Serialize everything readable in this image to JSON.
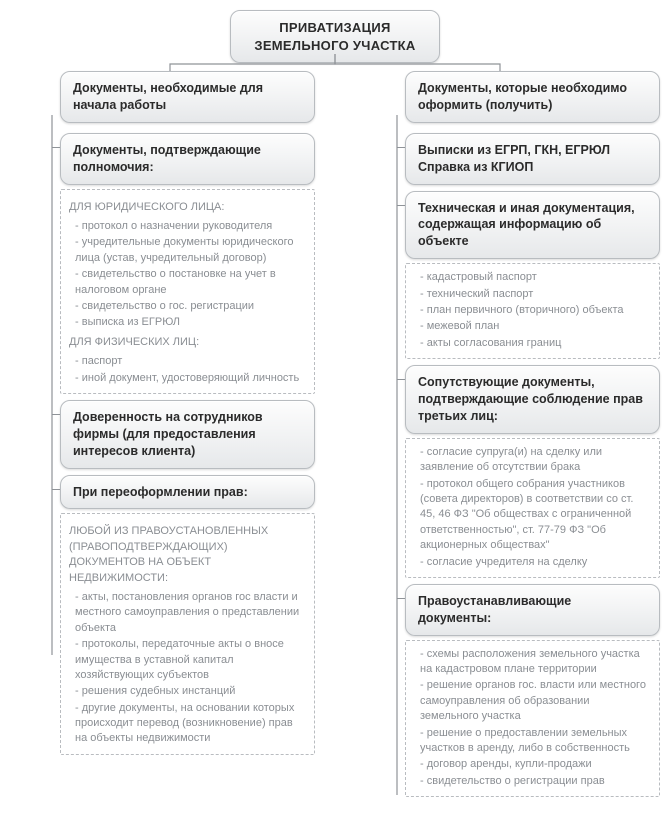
{
  "diagram": {
    "type": "flowchart",
    "background_color": "#ffffff",
    "box_fill_gradient": [
      "#fdfdfd",
      "#e6e8ea"
    ],
    "box_border_color": "#b8bcc0",
    "box_text_color": "#2b2b2b",
    "detail_border_color": "#b9bcc0",
    "detail_text_color": "#8a8e93",
    "connector_color": "#8f9398",
    "title_fontsize": 13,
    "heading_fontsize": 12.5,
    "detail_fontsize": 11,
    "root": "ПРИВАТИЗАЦИЯ ЗЕМЕЛЬНОГО УЧАСТКА",
    "left": {
      "title": "Документы, необходимые для начала работы",
      "groups": [
        {
          "title": "Документы, подтверждающие полномочия:",
          "detail": {
            "sections": [
              {
                "subhead": "ДЛЯ ЮРИДИЧЕСКОГО ЛИЦА:",
                "items": [
                  "протокол о назначении руководителя",
                  "учредительные документы юридического лица (устав, учредительный договор)",
                  "свидетельство о постановке на учет в налоговом органе",
                  "свидетельство о гос. регистрации",
                  "выписка из ЕГРЮЛ"
                ]
              },
              {
                "subhead": "ДЛЯ ФИЗИЧЕСКИХ ЛИЦ:",
                "items": [
                  "паспорт",
                  "иной документ, удостоверяющий личность"
                ]
              }
            ]
          }
        },
        {
          "title": "Доверенность на сотрудников фирмы (для предоставления интересов клиента)"
        },
        {
          "title": "При переоформлении прав:",
          "detail": {
            "sections": [
              {
                "subhead": "ЛЮБОЙ ИЗ ПРАВОУСТАНОВЛЕННЫХ (ПРАВОПОДТВЕРЖДАЮЩИХ) ДОКУМЕНТОВ НА ОБЪЕКТ НЕДВИЖИМОСТИ:",
                "items": [
                  "акты, постановления органов гос власти и местного самоуправления о представлении объекта",
                  "протоколы, передаточные акты о вносе имущества в уставной капитал хозяйствующих субъектов",
                  "решения судебных инстанций",
                  "другие документы, на основании которых происходит перевод (возникновение) прав на объекты недвижимости"
                ]
              }
            ]
          }
        }
      ]
    },
    "right": {
      "title": "Документы, которые необходимо оформить (получить)",
      "groups": [
        {
          "title": "Выписки из ЕГРП, ГКН, ЕГРЮЛ Справка из КГИОП"
        },
        {
          "title": "Техническая и иная документация, содержащая информацию об объекте",
          "detail": {
            "sections": [
              {
                "items": [
                  "кадастровый паспорт",
                  "технический паспорт",
                  "план первичного (вторичного) объекта",
                  "межевой план",
                  "акты согласования границ"
                ]
              }
            ]
          }
        },
        {
          "title": "Сопутствующие документы, подтверждающие соблюдение прав третьих лиц:",
          "detail": {
            "sections": [
              {
                "items": [
                  "согласие супруга(и) на сделку или заявление об отсутствии брака",
                  "протокол общего собрания участников (совета директоров) в соответствии со ст. 45, 46 ФЗ \"Об обществах с ограниченной ответственностью\", ст. 77-79 ФЗ \"Об акционерных обществах\"",
                  "согласие учредителя на сделку"
                ]
              }
            ]
          }
        },
        {
          "title": "Правоустанавливающие документы:",
          "detail": {
            "sections": [
              {
                "items": [
                  "схемы расположения земельного участка на кадастровом плане территории",
                  "решение органов гос. власти или местного самоуправления об образовании земельного участка",
                  "решение о предоставлении земельных участков в аренду, либо в собственность",
                  "договор аренды, купли-продажи",
                  "свидетельство о регистрации прав"
                ]
              }
            ]
          }
        }
      ]
    }
  }
}
